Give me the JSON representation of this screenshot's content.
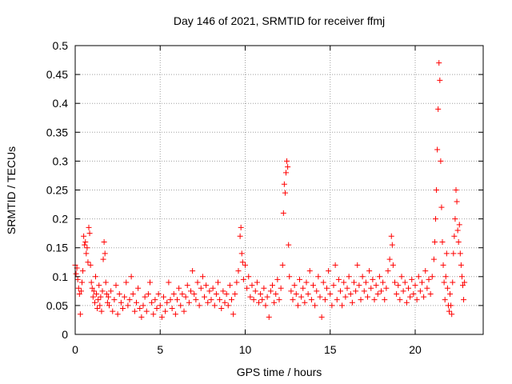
{
  "chart_data": {
    "type": "scatter",
    "title": "Day 146 of 2021, SRMTID for receiver ffmj",
    "xlabel": "GPS time / hours",
    "ylabel": "SRMTID / TECUs",
    "xlim": [
      0,
      24
    ],
    "ylim": [
      0,
      0.5
    ],
    "xticks": [
      0,
      5,
      10,
      15,
      20
    ],
    "xtick_labels": [
      "0",
      "5",
      "10",
      "15",
      "20"
    ],
    "yticks": [
      0,
      0.05,
      0.1,
      0.15,
      0.2,
      0.25,
      0.3,
      0.35,
      0.4,
      0.45,
      0.5
    ],
    "ytick_labels": [
      "0",
      "0.05",
      "0.1",
      "0.15",
      "0.2",
      "0.25",
      "0.3",
      "0.35",
      "0.4",
      "0.45",
      "0.5"
    ],
    "grid": true,
    "marker": "plus",
    "series": [
      {
        "name": "SRMTID",
        "color": "#ff0000",
        "points": [
          [
            0.0,
            0.12
          ],
          [
            0.05,
            0.105
          ],
          [
            0.1,
            0.115
          ],
          [
            0.15,
            0.095
          ],
          [
            0.2,
            0.08
          ],
          [
            0.25,
            0.07
          ],
          [
            0.3,
            0.035
          ],
          [
            0.35,
            0.075
          ],
          [
            0.4,
            0.09
          ],
          [
            0.45,
            0.11
          ],
          [
            0.5,
            0.17
          ],
          [
            0.55,
            0.155
          ],
          [
            0.6,
            0.16
          ],
          [
            0.65,
            0.14
          ],
          [
            0.7,
            0.15
          ],
          [
            0.75,
            0.125
          ],
          [
            0.8,
            0.185
          ],
          [
            0.85,
            0.175
          ],
          [
            0.9,
            0.12
          ],
          [
            0.95,
            0.09
          ],
          [
            1.0,
            0.08
          ],
          [
            1.05,
            0.065
          ],
          [
            1.1,
            0.075
          ],
          [
            1.15,
            0.055
          ],
          [
            1.2,
            0.1
          ],
          [
            1.25,
            0.07
          ],
          [
            1.3,
            0.045
          ],
          [
            1.35,
            0.06
          ],
          [
            1.4,
            0.085
          ],
          [
            1.45,
            0.05
          ],
          [
            1.5,
            0.065
          ],
          [
            1.55,
            0.04
          ],
          [
            1.6,
            0.075
          ],
          [
            1.65,
            0.13
          ],
          [
            1.7,
            0.16
          ],
          [
            1.75,
            0.14
          ],
          [
            1.8,
            0.09
          ],
          [
            1.85,
            0.07
          ],
          [
            1.9,
            0.055
          ],
          [
            1.95,
            0.065
          ],
          [
            2.0,
            0.05
          ],
          [
            2.1,
            0.075
          ],
          [
            2.2,
            0.04
          ],
          [
            2.3,
            0.06
          ],
          [
            2.4,
            0.085
          ],
          [
            2.5,
            0.035
          ],
          [
            2.6,
            0.07
          ],
          [
            2.7,
            0.055
          ],
          [
            2.8,
            0.045
          ],
          [
            2.9,
            0.065
          ],
          [
            3.0,
            0.09
          ],
          [
            3.1,
            0.05
          ],
          [
            3.2,
            0.06
          ],
          [
            3.3,
            0.1
          ],
          [
            3.4,
            0.07
          ],
          [
            3.5,
            0.04
          ],
          [
            3.6,
            0.055
          ],
          [
            3.7,
            0.08
          ],
          [
            3.8,
            0.045
          ],
          [
            3.9,
            0.03
          ],
          [
            4.0,
            0.05
          ],
          [
            4.1,
            0.065
          ],
          [
            4.2,
            0.04
          ],
          [
            4.3,
            0.07
          ],
          [
            4.4,
            0.09
          ],
          [
            4.5,
            0.055
          ],
          [
            4.6,
            0.035
          ],
          [
            4.7,
            0.06
          ],
          [
            4.8,
            0.045
          ],
          [
            4.9,
            0.07
          ],
          [
            5.0,
            0.05
          ],
          [
            5.1,
            0.03
          ],
          [
            5.2,
            0.065
          ],
          [
            5.3,
            0.04
          ],
          [
            5.4,
            0.055
          ],
          [
            5.5,
            0.09
          ],
          [
            5.6,
            0.06
          ],
          [
            5.7,
            0.045
          ],
          [
            5.8,
            0.07
          ],
          [
            5.9,
            0.035
          ],
          [
            6.0,
            0.06
          ],
          [
            6.1,
            0.08
          ],
          [
            6.2,
            0.05
          ],
          [
            6.3,
            0.07
          ],
          [
            6.4,
            0.04
          ],
          [
            6.5,
            0.065
          ],
          [
            6.6,
            0.085
          ],
          [
            6.7,
            0.055
          ],
          [
            6.8,
            0.075
          ],
          [
            6.9,
            0.11
          ],
          [
            7.0,
            0.07
          ],
          [
            7.1,
            0.06
          ],
          [
            7.2,
            0.09
          ],
          [
            7.3,
            0.05
          ],
          [
            7.4,
            0.08
          ],
          [
            7.5,
            0.1
          ],
          [
            7.6,
            0.065
          ],
          [
            7.7,
            0.085
          ],
          [
            7.8,
            0.055
          ],
          [
            7.9,
            0.075
          ],
          [
            8.0,
            0.06
          ],
          [
            8.1,
            0.08
          ],
          [
            8.2,
            0.05
          ],
          [
            8.3,
            0.07
          ],
          [
            8.4,
            0.09
          ],
          [
            8.5,
            0.06
          ],
          [
            8.6,
            0.045
          ],
          [
            8.7,
            0.075
          ],
          [
            8.8,
            0.055
          ],
          [
            8.9,
            0.07
          ],
          [
            9.0,
            0.05
          ],
          [
            9.1,
            0.085
          ],
          [
            9.2,
            0.06
          ],
          [
            9.3,
            0.035
          ],
          [
            9.4,
            0.07
          ],
          [
            9.5,
            0.09
          ],
          [
            9.6,
            0.11
          ],
          [
            9.7,
            0.17
          ],
          [
            9.75,
            0.185
          ],
          [
            9.8,
            0.14
          ],
          [
            9.85,
            0.125
          ],
          [
            9.9,
            0.095
          ],
          [
            10.0,
            0.12
          ],
          [
            10.1,
            0.08
          ],
          [
            10.2,
            0.1
          ],
          [
            10.3,
            0.065
          ],
          [
            10.4,
            0.085
          ],
          [
            10.5,
            0.06
          ],
          [
            10.6,
            0.075
          ],
          [
            10.7,
            0.09
          ],
          [
            10.8,
            0.055
          ],
          [
            10.9,
            0.07
          ],
          [
            11.0,
            0.06
          ],
          [
            11.1,
            0.08
          ],
          [
            11.2,
            0.05
          ],
          [
            11.3,
            0.065
          ],
          [
            11.4,
            0.03
          ],
          [
            11.5,
            0.075
          ],
          [
            11.6,
            0.085
          ],
          [
            11.7,
            0.055
          ],
          [
            11.8,
            0.07
          ],
          [
            11.9,
            0.095
          ],
          [
            12.0,
            0.06
          ],
          [
            12.1,
            0.08
          ],
          [
            12.2,
            0.12
          ],
          [
            12.25,
            0.21
          ],
          [
            12.3,
            0.26
          ],
          [
            12.35,
            0.245
          ],
          [
            12.4,
            0.28
          ],
          [
            12.45,
            0.3
          ],
          [
            12.5,
            0.29
          ],
          [
            12.55,
            0.155
          ],
          [
            12.6,
            0.1
          ],
          [
            12.7,
            0.075
          ],
          [
            12.8,
            0.06
          ],
          [
            12.9,
            0.085
          ],
          [
            13.0,
            0.07
          ],
          [
            13.1,
            0.05
          ],
          [
            13.2,
            0.095
          ],
          [
            13.3,
            0.065
          ],
          [
            13.4,
            0.08
          ],
          [
            13.5,
            0.055
          ],
          [
            13.6,
            0.09
          ],
          [
            13.7,
            0.07
          ],
          [
            13.8,
            0.11
          ],
          [
            13.9,
            0.06
          ],
          [
            14.0,
            0.085
          ],
          [
            14.1,
            0.05
          ],
          [
            14.2,
            0.075
          ],
          [
            14.3,
            0.1
          ],
          [
            14.4,
            0.065
          ],
          [
            14.5,
            0.03
          ],
          [
            14.6,
            0.09
          ],
          [
            14.7,
            0.06
          ],
          [
            14.8,
            0.08
          ],
          [
            14.9,
            0.11
          ],
          [
            15.0,
            0.07
          ],
          [
            15.1,
            0.05
          ],
          [
            15.2,
            0.085
          ],
          [
            15.3,
            0.12
          ],
          [
            15.4,
            0.06
          ],
          [
            15.5,
            0.095
          ],
          [
            15.6,
            0.075
          ],
          [
            15.7,
            0.05
          ],
          [
            15.8,
            0.09
          ],
          [
            15.9,
            0.065
          ],
          [
            16.0,
            0.08
          ],
          [
            16.1,
            0.1
          ],
          [
            16.2,
            0.07
          ],
          [
            16.3,
            0.055
          ],
          [
            16.4,
            0.09
          ],
          [
            16.5,
            0.075
          ],
          [
            16.6,
            0.12
          ],
          [
            16.7,
            0.085
          ],
          [
            16.8,
            0.06
          ],
          [
            16.9,
            0.1
          ],
          [
            17.0,
            0.075
          ],
          [
            17.1,
            0.09
          ],
          [
            17.2,
            0.065
          ],
          [
            17.3,
            0.11
          ],
          [
            17.4,
            0.08
          ],
          [
            17.5,
            0.095
          ],
          [
            17.6,
            0.06
          ],
          [
            17.7,
            0.085
          ],
          [
            17.8,
            0.07
          ],
          [
            17.9,
            0.1
          ],
          [
            18.0,
            0.075
          ],
          [
            18.1,
            0.09
          ],
          [
            18.2,
            0.06
          ],
          [
            18.3,
            0.08
          ],
          [
            18.4,
            0.11
          ],
          [
            18.5,
            0.13
          ],
          [
            18.6,
            0.17
          ],
          [
            18.65,
            0.155
          ],
          [
            18.7,
            0.12
          ],
          [
            18.8,
            0.09
          ],
          [
            18.9,
            0.07
          ],
          [
            19.0,
            0.085
          ],
          [
            19.1,
            0.06
          ],
          [
            19.2,
            0.1
          ],
          [
            19.3,
            0.075
          ],
          [
            19.4,
            0.09
          ],
          [
            19.5,
            0.055
          ],
          [
            19.6,
            0.08
          ],
          [
            19.7,
            0.065
          ],
          [
            19.8,
            0.095
          ],
          [
            19.9,
            0.07
          ],
          [
            20.0,
            0.085
          ],
          [
            20.1,
            0.06
          ],
          [
            20.2,
            0.1
          ],
          [
            20.3,
            0.075
          ],
          [
            20.4,
            0.09
          ],
          [
            20.5,
            0.065
          ],
          [
            20.6,
            0.11
          ],
          [
            20.7,
            0.08
          ],
          [
            20.8,
            0.095
          ],
          [
            20.9,
            0.07
          ],
          [
            21.0,
            0.1
          ],
          [
            21.1,
            0.13
          ],
          [
            21.15,
            0.16
          ],
          [
            21.2,
            0.2
          ],
          [
            21.25,
            0.25
          ],
          [
            21.3,
            0.32
          ],
          [
            21.35,
            0.39
          ],
          [
            21.4,
            0.47
          ],
          [
            21.45,
            0.44
          ],
          [
            21.5,
            0.3
          ],
          [
            21.55,
            0.22
          ],
          [
            21.6,
            0.16
          ],
          [
            21.65,
            0.12
          ],
          [
            21.7,
            0.09
          ],
          [
            21.75,
            0.06
          ],
          [
            21.8,
            0.1
          ],
          [
            21.85,
            0.14
          ],
          [
            21.9,
            0.08
          ],
          [
            21.95,
            0.05
          ],
          [
            22.0,
            0.04
          ],
          [
            22.05,
            0.07
          ],
          [
            22.1,
            0.05
          ],
          [
            22.15,
            0.035
          ],
          [
            22.2,
            0.09
          ],
          [
            22.25,
            0.14
          ],
          [
            22.3,
            0.17
          ],
          [
            22.35,
            0.2
          ],
          [
            22.4,
            0.25
          ],
          [
            22.45,
            0.23
          ],
          [
            22.5,
            0.18
          ],
          [
            22.55,
            0.16
          ],
          [
            22.6,
            0.19
          ],
          [
            22.65,
            0.14
          ],
          [
            22.7,
            0.12
          ],
          [
            22.75,
            0.1
          ],
          [
            22.8,
            0.085
          ],
          [
            22.85,
            0.06
          ],
          [
            22.9,
            0.09
          ]
        ]
      }
    ]
  }
}
